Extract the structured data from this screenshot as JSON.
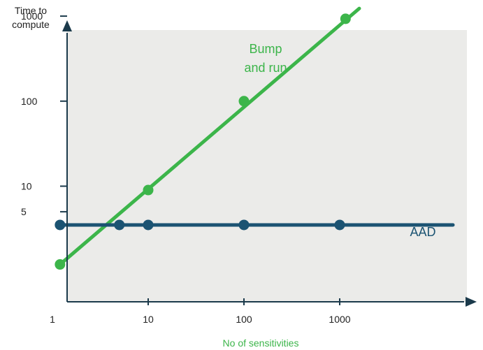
{
  "chart_data": {
    "type": "line",
    "x_scale": "log",
    "y_scale": "log",
    "xlabel": "No of sensitivities",
    "ylabel": [
      "Time to",
      "compute"
    ],
    "x_ticks": [
      {
        "value": 1,
        "label": "1"
      },
      {
        "value": 10,
        "label": "10"
      },
      {
        "value": 100,
        "label": "100"
      },
      {
        "value": 1000,
        "label": "1000"
      }
    ],
    "y_ticks": [
      {
        "value": 5,
        "label": "5"
      },
      {
        "value": 10,
        "label": "10"
      },
      {
        "value": 100,
        "label": "100"
      },
      {
        "value": 1000,
        "label": "1000"
      }
    ],
    "series": [
      {
        "name": "Bump and run",
        "label_lines": [
          "Bump",
          "and run"
        ],
        "color": "#3cb54a",
        "points": [
          {
            "x": 1.2,
            "y": 1.2
          },
          {
            "x": 10,
            "y": 9
          },
          {
            "x": 100,
            "y": 100
          },
          {
            "x": 1150,
            "y": 930
          }
        ],
        "line_extent": [
          {
            "x": 1.2,
            "y": 1.2
          },
          {
            "x": 1600,
            "y": 1230
          }
        ]
      },
      {
        "name": "AAD",
        "label_lines": [
          "AAD"
        ],
        "color": "#1b5372",
        "points": [
          {
            "x": 1.2,
            "y": 3.5
          },
          {
            "x": 5,
            "y": 3.5
          },
          {
            "x": 10,
            "y": 3.5
          },
          {
            "x": 100,
            "y": 3.5
          },
          {
            "x": 1000,
            "y": 3.5
          }
        ],
        "line_extent": [
          {
            "x": 1.2,
            "y": 3.5
          },
          {
            "x": 20000,
            "y": 3.5
          }
        ]
      }
    ],
    "grid": false,
    "background_color": "#ebebe9",
    "axis_color": "#1b3a4b",
    "xlabel_color": "#3cb54a"
  }
}
